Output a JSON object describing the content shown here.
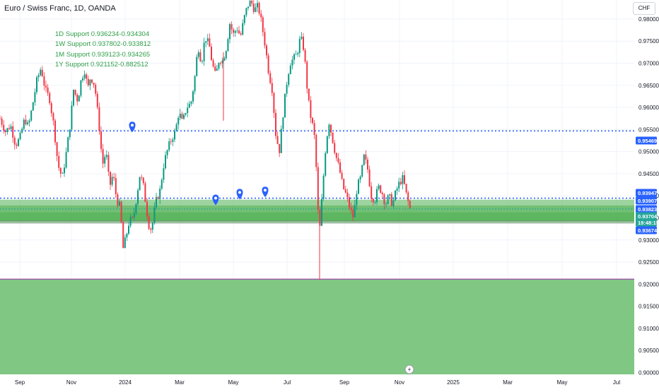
{
  "header": {
    "title": "Euro / Swiss Franc, 1D, OANDA",
    "currency": "CHF"
  },
  "annotations": {
    "support_lines": [
      "1D Support 0.936234-0.934304",
      "1W Support 0.937802-0.933812",
      "1M Support 0.939123-0.934265",
      "1Y Support 0.921152-0.882512"
    ]
  },
  "chart_data": {
    "type": "candlestick",
    "x_ticks": [
      "Sep",
      "Nov",
      "2024",
      "Mar",
      "May",
      "Jul",
      "Sep",
      "Nov",
      "2025",
      "Mar",
      "May",
      "Jul"
    ],
    "y_ticks": [
      "0.98000",
      "0.97500",
      "0.97000",
      "0.96500",
      "0.96000",
      "0.95500",
      "0.95000",
      "0.94500",
      "0.94000",
      "0.93500",
      "0.93000",
      "0.92500",
      "0.92000",
      "0.91500",
      "0.91000",
      "0.90500",
      "0.90000"
    ],
    "ylim": [
      0.8996,
      0.9843
    ],
    "zones": [
      {
        "label": "1D Support",
        "low": 0.934304,
        "high": 0.936234,
        "color": "#4caf50"
      },
      {
        "label": "1W Support",
        "low": 0.933812,
        "high": 0.937802,
        "color": "#4caf50"
      },
      {
        "label": "1M Support",
        "low": 0.934265,
        "high": 0.939123,
        "color": "#4caf50"
      },
      {
        "label": "1Y Support",
        "low": 0.882512,
        "high": 0.921152,
        "color": "#81c784"
      }
    ],
    "dotted_levels": [
      0.95469,
      0.93947
    ],
    "price_labels": [
      {
        "text": "0.95469",
        "value": 0.95469,
        "bg": "#2962ff"
      },
      {
        "text": "0.93947",
        "value": 0.93947,
        "bg": "#2962ff"
      },
      {
        "text": "0.93907",
        "value": 0.93907,
        "bg": "#2962ff"
      },
      {
        "text": "0.93823",
        "value": 0.93823,
        "bg": "#2962ff"
      },
      {
        "text": "0.93704",
        "value": 0.93704,
        "bg": "#26a69a"
      },
      {
        "text": "19:48:15",
        "value": 0.93565,
        "bg": "#26a69a"
      },
      {
        "text": "0.93674",
        "value": 0.93674,
        "bg": "#2962ff"
      }
    ],
    "up_color": "#089981",
    "down_color": "#f23645",
    "event_markers": 4,
    "path": [
      [
        0,
        0.9575
      ],
      [
        8,
        0.9545
      ],
      [
        15,
        0.956
      ],
      [
        22,
        0.9515
      ],
      [
        28,
        0.953
      ],
      [
        35,
        0.9575
      ],
      [
        40,
        0.9555
      ],
      [
        46,
        0.9605
      ],
      [
        52,
        0.966
      ],
      [
        58,
        0.969
      ],
      [
        64,
        0.964
      ],
      [
        70,
        0.962
      ],
      [
        76,
        0.956
      ],
      [
        82,
        0.947
      ],
      [
        88,
        0.944
      ],
      [
        94,
        0.95
      ],
      [
        99,
        0.956
      ],
      [
        104,
        0.964
      ],
      [
        110,
        0.9615
      ],
      [
        115,
        0.9665
      ],
      [
        120,
        0.9685
      ],
      [
        124,
        0.964
      ],
      [
        128,
        0.967
      ],
      [
        134,
        0.965
      ],
      [
        140,
        0.956
      ],
      [
        145,
        0.947
      ],
      [
        150,
        0.95
      ],
      [
        155,
        0.942
      ],
      [
        160,
        0.945
      ],
      [
        165,
        0.939
      ],
      [
        170,
        0.9375
      ],
      [
        174,
        0.928
      ],
      [
        178,
        0.9305
      ],
      [
        183,
        0.9345
      ],
      [
        188,
        0.9345
      ],
      [
        193,
        0.9395
      ],
      [
        198,
        0.945
      ],
      [
        203,
        0.942
      ],
      [
        208,
        0.936
      ],
      [
        212,
        0.932
      ],
      [
        216,
        0.934
      ],
      [
        220,
        0.9385
      ],
      [
        226,
        0.941
      ],
      [
        232,
        0.9475
      ],
      [
        238,
        0.951
      ],
      [
        243,
        0.953
      ],
      [
        248,
        0.9545
      ],
      [
        253,
        0.959
      ],
      [
        258,
        0.9565
      ],
      [
        264,
        0.96
      ],
      [
        270,
        0.961
      ],
      [
        275,
        0.966
      ],
      [
        280,
        0.974
      ],
      [
        285,
        0.97
      ],
      [
        290,
        0.976
      ],
      [
        296,
        0.974
      ],
      [
        300,
        0.97
      ],
      [
        305,
        0.967
      ],
      [
        310,
        0.971
      ],
      [
        315,
        0.9705
      ],
      [
        320,
        0.9735
      ],
      [
        325,
        0.979
      ],
      [
        330,
        0.9765
      ],
      [
        335,
        0.978
      ],
      [
        340,
        0.976
      ],
      [
        345,
        0.98
      ],
      [
        350,
        0.983
      ],
      [
        355,
        0.984
      ],
      [
        360,
        0.982
      ],
      [
        365,
        0.983
      ],
      [
        370,
        0.979
      ],
      [
        375,
        0.974
      ],
      [
        380,
        0.968
      ],
      [
        385,
        0.964
      ],
      [
        390,
        0.954
      ],
      [
        395,
        0.95
      ],
      [
        400,
        0.958
      ],
      [
        405,
        0.965
      ],
      [
        410,
        0.97
      ],
      [
        415,
        0.971
      ],
      [
        420,
        0.972
      ],
      [
        425,
        0.976
      ],
      [
        430,
        0.973
      ],
      [
        434,
        0.965
      ],
      [
        438,
        0.959
      ],
      [
        442,
        0.956
      ],
      [
        446,
        0.952
      ],
      [
        449,
        0.938
      ],
      [
        452,
        0.932
      ],
      [
        456,
        0.941
      ],
      [
        460,
        0.95
      ],
      [
        465,
        0.957
      ],
      [
        470,
        0.953
      ],
      [
        475,
        0.949
      ],
      [
        480,
        0.946
      ],
      [
        485,
        0.942
      ],
      [
        490,
        0.94
      ],
      [
        495,
        0.937
      ],
      [
        500,
        0.935
      ],
      [
        505,
        0.942
      ],
      [
        510,
        0.944
      ],
      [
        515,
        0.949
      ],
      [
        520,
        0.946
      ],
      [
        525,
        0.94
      ],
      [
        530,
        0.939
      ],
      [
        535,
        0.942
      ],
      [
        540,
        0.941
      ],
      [
        545,
        0.938
      ],
      [
        550,
        0.94
      ],
      [
        555,
        0.938
      ],
      [
        560,
        0.941
      ],
      [
        565,
        0.943
      ],
      [
        570,
        0.944
      ],
      [
        575,
        0.94
      ],
      [
        580,
        0.937
      ]
    ]
  }
}
